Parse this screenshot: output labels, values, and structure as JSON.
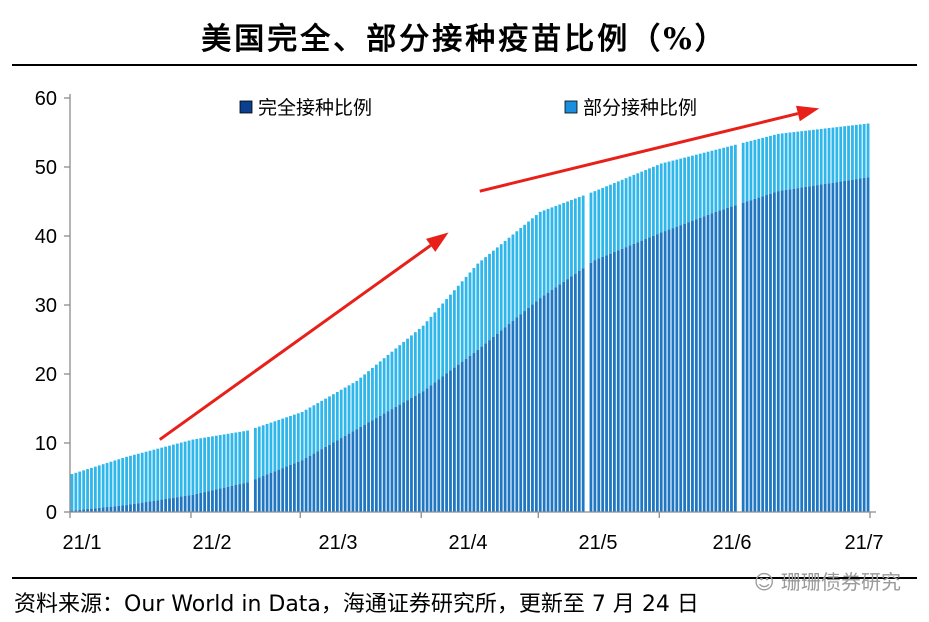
{
  "title": "美国完全、部分接种疫苗比例（%）",
  "footer": "资料来源：Our World in Data，海通证券研究所，更新至 7 月 24 日",
  "watermark": "☺ 珊珊债券研究",
  "colors": {
    "fully": "#1f77c3",
    "partial": "#2fb6ea",
    "arrow": "#e8201a",
    "axis": "#8c8c8c"
  },
  "chart_data": {
    "type": "bar",
    "stacked": true,
    "ylim": [
      0,
      60
    ],
    "yticks": [
      0,
      10,
      20,
      30,
      40,
      50,
      60
    ],
    "xticks": [
      "21/1",
      "21/2",
      "21/3",
      "21/4",
      "21/5",
      "21/6",
      "21/7"
    ],
    "legend": {
      "placement": "top",
      "entries": [
        "完全接种比例",
        "部分接种比例"
      ]
    },
    "x_range": [
      "2021-01-01",
      "2021-07-24"
    ],
    "gaps": [
      "2021-02-16",
      "2021-05-13",
      "2021-06-21"
    ],
    "series": [
      {
        "name": "完全接种比例",
        "anchors": [
          [
            "2021-01-01",
            0.2
          ],
          [
            "2021-01-15",
            1.0
          ],
          [
            "2021-02-01",
            2.5
          ],
          [
            "2021-02-15",
            4.3
          ],
          [
            "2021-03-01",
            7.5
          ],
          [
            "2021-03-15",
            12.0
          ],
          [
            "2021-04-01",
            17.5
          ],
          [
            "2021-04-15",
            23.5
          ],
          [
            "2021-05-01",
            31.0
          ],
          [
            "2021-05-15",
            36.5
          ],
          [
            "2021-06-01",
            40.5
          ],
          [
            "2021-06-15",
            43.5
          ],
          [
            "2021-07-01",
            46.5
          ],
          [
            "2021-07-24",
            48.5
          ]
        ]
      },
      {
        "name": "部分接种比例",
        "total_anchors": [
          [
            "2021-01-01",
            5.5
          ],
          [
            "2021-01-15",
            8.0
          ],
          [
            "2021-02-01",
            10.5
          ],
          [
            "2021-02-15",
            11.8
          ],
          [
            "2021-03-01",
            14.5
          ],
          [
            "2021-03-15",
            19.0
          ],
          [
            "2021-04-01",
            27.0
          ],
          [
            "2021-04-15",
            36.0
          ],
          [
            "2021-05-01",
            43.5
          ],
          [
            "2021-05-15",
            46.5
          ],
          [
            "2021-06-01",
            50.5
          ],
          [
            "2021-06-15",
            52.5
          ],
          [
            "2021-07-01",
            54.8
          ],
          [
            "2021-07-24",
            56.3
          ]
        ]
      }
    ],
    "annotations": [
      {
        "type": "arrow",
        "from": [
          "2021-01-24",
          10.5
        ],
        "to": [
          "2021-04-08",
          40.5
        ]
      },
      {
        "type": "arrow",
        "from": [
          "2021-04-16",
          46.5
        ],
        "to": [
          "2021-07-12",
          58.5
        ]
      }
    ]
  }
}
